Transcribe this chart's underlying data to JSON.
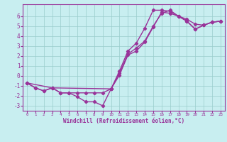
{
  "xlabel": "Windchill (Refroidissement éolien,°C)",
  "bg_color": "#c8eef0",
  "line_color": "#993399",
  "grid_color": "#99cccc",
  "line1_x": [
    0,
    1,
    2,
    3,
    4,
    5,
    6,
    7,
    8,
    9,
    10,
    11,
    12,
    13,
    14,
    15,
    16,
    17,
    18,
    19,
    20,
    21,
    22,
    23
  ],
  "line1_y": [
    -0.7,
    -1.2,
    -1.5,
    -1.2,
    -1.7,
    -1.7,
    -2.1,
    -2.6,
    -2.6,
    -3.0,
    -1.3,
    0.5,
    2.5,
    3.3,
    4.8,
    6.6,
    6.6,
    6.5,
    6.0,
    5.7,
    5.2,
    5.1,
    5.4,
    5.5
  ],
  "line2_x": [
    0,
    1,
    2,
    3,
    4,
    5,
    6,
    7,
    8,
    9,
    10,
    11,
    12,
    13,
    14,
    15,
    16,
    17,
    18,
    19,
    20,
    21,
    22,
    23
  ],
  "line2_y": [
    -0.7,
    -1.2,
    -1.5,
    -1.2,
    -1.7,
    -1.7,
    -1.7,
    -1.7,
    -1.7,
    -1.7,
    -1.3,
    0.3,
    2.2,
    2.8,
    3.5,
    5.0,
    6.3,
    6.6,
    6.0,
    5.5,
    4.7,
    5.1,
    5.4,
    5.5
  ],
  "line3_x": [
    0,
    3,
    10,
    11,
    12,
    13,
    14,
    15,
    16,
    17,
    18,
    19,
    20,
    21,
    22,
    23
  ],
  "line3_y": [
    -0.7,
    -1.2,
    -1.3,
    0.1,
    2.1,
    2.5,
    3.4,
    4.9,
    6.4,
    6.3,
    6.0,
    5.5,
    4.7,
    5.1,
    5.4,
    5.5
  ],
  "xlim": [
    -0.5,
    23.5
  ],
  "ylim": [
    -3.5,
    7.2
  ],
  "yticks": [
    -3,
    -2,
    -1,
    0,
    1,
    2,
    3,
    4,
    5,
    6
  ],
  "xticks": [
    0,
    1,
    2,
    3,
    4,
    5,
    6,
    7,
    8,
    9,
    10,
    11,
    12,
    13,
    14,
    15,
    16,
    17,
    18,
    19,
    20,
    21,
    22,
    23
  ],
  "xlabel_fontsize": 5.5,
  "xtick_fontsize": 4.2,
  "ytick_fontsize": 5.5,
  "linewidth": 1.0,
  "markersize": 2.2
}
